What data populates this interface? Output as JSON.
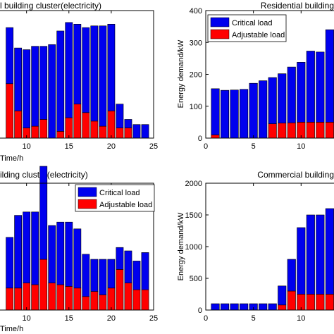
{
  "chart_data": [
    {
      "id": "tl",
      "type": "bar",
      "stacked": true,
      "title": "l building cluster(electricity)",
      "xlabel": "Time/h",
      "ylabel": "",
      "x_ticks": [
        "10",
        "15",
        "20",
        "25"
      ],
      "y_ticks": [],
      "legend": null,
      "x": [
        8,
        9,
        10,
        11,
        12,
        13,
        14,
        15,
        16,
        17,
        18,
        19,
        20,
        21,
        22,
        23,
        24
      ],
      "series": [
        {
          "name": "Critical load",
          "color": "#0000ee",
          "values": [
            0.33,
            0.37,
            0.46,
            0.47,
            0.43,
            0.55,
            0.59,
            0.56,
            0.47,
            0.5,
            0.56,
            0.59,
            0.51,
            0.14,
            0.05,
            0.08,
            0.08
          ]
        },
        {
          "name": "Adjustable load",
          "color": "#ff0000",
          "values": [
            0.32,
            0.16,
            0.06,
            0.07,
            0.11,
            0.0,
            0.04,
            0.12,
            0.2,
            0.15,
            0.1,
            0.07,
            0.16,
            0.06,
            0.06,
            0.0,
            0.0
          ]
        }
      ]
    },
    {
      "id": "tr",
      "type": "bar",
      "stacked": true,
      "title": "Residential building",
      "xlabel": "",
      "ylabel": "Energy demand/kW",
      "x_ticks": [
        "0",
        "5",
        "10"
      ],
      "y_ticks": [
        "0",
        "100",
        "200",
        "300",
        "400"
      ],
      "ylim": [
        0,
        400
      ],
      "legend": {
        "position": "top-left",
        "entries": [
          "Critical load",
          "Adjustable load"
        ]
      },
      "x": [
        1,
        2,
        3,
        4,
        5,
        6,
        7,
        8,
        9,
        10,
        11,
        12,
        13
      ],
      "series": [
        {
          "name": "Critical load",
          "color": "#0000ee",
          "values": [
            145,
            150,
            151,
            153,
            172,
            180,
            145,
            155,
            175,
            188,
            223,
            220,
            290
          ]
        },
        {
          "name": "Adjustable load",
          "color": "#ff0000",
          "values": [
            10,
            0,
            0,
            0,
            0,
            0,
            45,
            47,
            48,
            50,
            50,
            50,
            50
          ]
        }
      ]
    },
    {
      "id": "bl",
      "type": "bar",
      "stacked": true,
      "title": "ilding cluster(electricity)",
      "xlabel": "Time/h",
      "ylabel": "",
      "x_ticks": [
        "10",
        "15",
        "20",
        "25"
      ],
      "y_ticks": [],
      "legend": {
        "position": "top-right",
        "entries": [
          "Critical load",
          "Adjustable load"
        ]
      },
      "x": [
        8,
        9,
        10,
        11,
        12,
        13,
        14,
        15,
        16,
        17,
        18,
        19,
        20,
        21,
        22,
        23,
        24
      ],
      "series": [
        {
          "name": "Critical load",
          "color": "#0000ee",
          "values": [
            0.3,
            0.43,
            0.42,
            0.43,
            0.55,
            0.34,
            0.37,
            0.38,
            0.35,
            0.25,
            0.19,
            0.21,
            0.17,
            0.13,
            0.19,
            0.17,
            0.22
          ]
        },
        {
          "name": "Adjustable load",
          "color": "#ff0000",
          "values": [
            0.13,
            0.13,
            0.16,
            0.15,
            0.3,
            0.16,
            0.15,
            0.14,
            0.13,
            0.08,
            0.11,
            0.09,
            0.13,
            0.24,
            0.16,
            0.12,
            0.12
          ]
        }
      ]
    },
    {
      "id": "br",
      "type": "bar",
      "stacked": true,
      "title": "Commercial building",
      "xlabel": "",
      "ylabel": "Energy demand/kW",
      "x_ticks": [
        "0",
        "5",
        "10"
      ],
      "y_ticks": [
        "0",
        "500",
        "1000",
        "1500",
        "2000"
      ],
      "ylim": [
        0,
        2000
      ],
      "legend": null,
      "x": [
        1,
        2,
        3,
        4,
        5,
        6,
        7,
        8,
        9,
        10,
        11,
        12,
        13
      ],
      "series": [
        {
          "name": "Critical load",
          "color": "#0000ee",
          "values": [
            100,
            100,
            100,
            100,
            100,
            100,
            100,
            300,
            500,
            1050,
            1250,
            1250,
            1350
          ]
        },
        {
          "name": "Adjustable load",
          "color": "#ff0000",
          "values": [
            0,
            0,
            0,
            0,
            0,
            0,
            0,
            80,
            300,
            250,
            250,
            250,
            250
          ]
        }
      ]
    }
  ]
}
